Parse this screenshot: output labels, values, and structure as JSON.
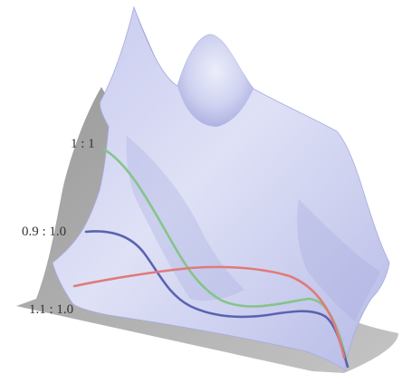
{
  "labels": {
    "ratio_1_1": "1 : 1",
    "ratio_0_9": "0.9 : 1.0",
    "ratio_1_1_over": "1.1 : 1.0"
  },
  "colors": {
    "surface_light": "#d9dcf3",
    "surface_mid": "#b9bde8",
    "surface_dark": "#9ea3d9",
    "shadow": "#a9a9a9",
    "green_curve": "#86c48a",
    "blue_curve": "#5a63b0",
    "red_curve": "#e07a7a",
    "label_text": "#333333"
  }
}
